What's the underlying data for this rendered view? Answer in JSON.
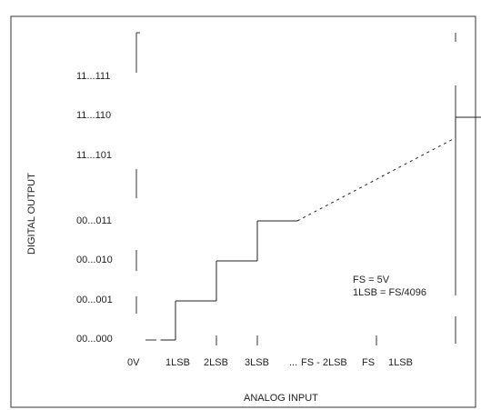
{
  "chart_data": {
    "type": "line",
    "title": "",
    "xlabel": "ANALOG INPUT",
    "ylabel": "DIGITAL OUTPUT",
    "x_tick_labels": [
      "0V",
      "1LSB",
      "2LSB",
      "3LSB",
      "FS - 2LSB",
      "FS",
      "1LSB"
    ],
    "y_tick_labels": [
      "00...000",
      "00...001",
      "00...010",
      "00...011",
      "11...101",
      "11...110",
      "11...111"
    ],
    "x_ellipsis": "...",
    "series": [
      {
        "values_note": "",
        "x": [
          0.5,
          1,
          1,
          2,
          2,
          3,
          3,
          3.5,
          6.0,
          6,
          6,
          7,
          7
        ],
        "y": [
          0,
          0,
          1,
          1,
          2,
          2,
          3,
          3,
          4.5,
          4.5,
          5,
          5,
          6
        ]
      }
    ],
    "annotations": [
      "FS = 5V",
      "1LSB = FS/4096"
    ],
    "grid": false,
    "legend": "none"
  },
  "colors": {
    "line": "#222222",
    "background": "#ffffff",
    "frame": "#333333"
  }
}
